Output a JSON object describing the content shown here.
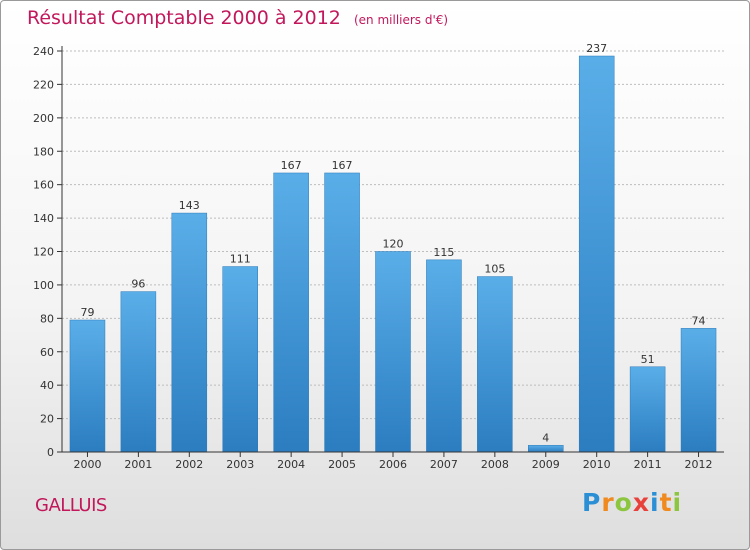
{
  "title": "Résultat Comptable 2000 à 2012",
  "subtitle": "(en milliers d'€)",
  "commune": "GALLUIS",
  "logo": {
    "text": "Proxiti",
    "letters": [
      {
        "ch": "P",
        "color": "#2b8fd6"
      },
      {
        "ch": "r",
        "color": "#f08a1e"
      },
      {
        "ch": "o",
        "color": "#8cc63f"
      },
      {
        "ch": "x",
        "color": "#e8403a"
      },
      {
        "ch": "i",
        "color": "#2b8fd6"
      },
      {
        "ch": "t",
        "color": "#f08a1e"
      },
      {
        "ch": "i",
        "color": "#8cc63f"
      }
    ]
  },
  "colors": {
    "title": "#c2185b",
    "bar_top": "#5aaee8",
    "bar_bottom": "#2b7dc0",
    "axis": "#333333",
    "grid": "#bdbdbd"
  },
  "chart_data": {
    "type": "bar",
    "title": "Résultat Comptable 2000 à 2012",
    "subtitle": "(en milliers d'€)",
    "xlabel": "",
    "ylabel": "",
    "categories": [
      "2000",
      "2001",
      "2002",
      "2003",
      "2004",
      "2005",
      "2006",
      "2007",
      "2008",
      "2009",
      "2010",
      "2011",
      "2012"
    ],
    "values": [
      79,
      96,
      143,
      111,
      167,
      167,
      120,
      115,
      105,
      4,
      237,
      51,
      74
    ],
    "ylim": [
      0,
      240
    ],
    "yticks": [
      0,
      20,
      40,
      60,
      80,
      100,
      120,
      140,
      160,
      180,
      200,
      220,
      240
    ],
    "grid": true,
    "legend": "none"
  }
}
